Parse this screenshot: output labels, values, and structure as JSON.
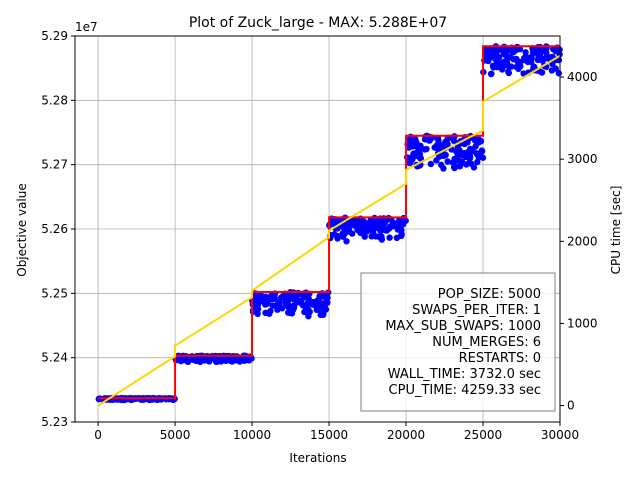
{
  "chart_data": {
    "type": "line",
    "title": "Plot of Zuck_large - MAX: 5.288E+07",
    "xlabel": "Iterations",
    "ylabel": "Objective value",
    "y2label": "CPU time [sec]",
    "y_offset_label": "1e7",
    "xlim": [
      -1500,
      30000
    ],
    "ylim": [
      52.3,
      52.9
    ],
    "y2lim": [
      -200,
      4500
    ],
    "grid": true,
    "x_ticks": [
      0,
      5000,
      10000,
      15000,
      20000,
      25000,
      30000
    ],
    "x_tick_labels": [
      "0",
      "5000",
      "10000",
      "15000",
      "20000",
      "25000",
      "30000"
    ],
    "y_ticks": [
      52.3,
      52.4,
      52.5,
      52.6,
      52.7,
      52.8,
      52.9
    ],
    "y_tick_labels": [
      "5.23",
      "5.24",
      "5.25",
      "5.26",
      "5.27",
      "5.28",
      "5.29"
    ],
    "y2_ticks": [
      0,
      1000,
      2000,
      3000,
      4000
    ],
    "y2_tick_labels": [
      "0",
      "1000",
      "2000",
      "3000",
      "4000"
    ],
    "series": [
      {
        "color": "#ff0000",
        "type": "step",
        "x": [
          0,
          5000,
          5000,
          10000,
          10000,
          15000,
          15000,
          20000,
          20000,
          25000,
          25000,
          30000
        ],
        "y": [
          52.337,
          52.337,
          52.403,
          52.403,
          52.502,
          52.502,
          52.618,
          52.618,
          52.745,
          52.745,
          52.884,
          52.884
        ]
      },
      {
        "color": "#0000ff",
        "type": "scatter",
        "bands": [
          {
            "x0": 0,
            "x1": 5000,
            "ymin": 52.334,
            "ymax": 52.337
          },
          {
            "x0": 5000,
            "x1": 10000,
            "ymin": 52.393,
            "ymax": 52.403
          },
          {
            "x0": 10000,
            "x1": 15000,
            "ymin": 52.464,
            "ymax": 52.502
          },
          {
            "x0": 15000,
            "x1": 20000,
            "ymin": 52.58,
            "ymax": 52.618
          },
          {
            "x0": 20000,
            "x1": 25000,
            "ymin": 52.693,
            "ymax": 52.745
          },
          {
            "x0": 25000,
            "x1": 30000,
            "ymin": 52.84,
            "ymax": 52.884
          }
        ]
      },
      {
        "color": "#ffd700",
        "type": "line",
        "axis": "right",
        "x": [
          0,
          5000,
          5000,
          10000,
          10000,
          15000,
          15000,
          20000,
          20000,
          25000,
          25000,
          30000
        ],
        "y": [
          0,
          600,
          730,
          1320,
          1400,
          2050,
          2130,
          2700,
          2870,
          3350,
          3700,
          4259
        ]
      }
    ],
    "annotation_box": {
      "lines": [
        "POP_SIZE: 5000",
        "SWAPS_PER_ITER: 1",
        "MAX_SUB_SWAPS: 1000",
        "NUM_MERGES: 6",
        "RESTARTS: 0",
        "WALL_TIME: 3732.0 sec",
        "CPU_TIME: 4259.33 sec"
      ]
    }
  }
}
